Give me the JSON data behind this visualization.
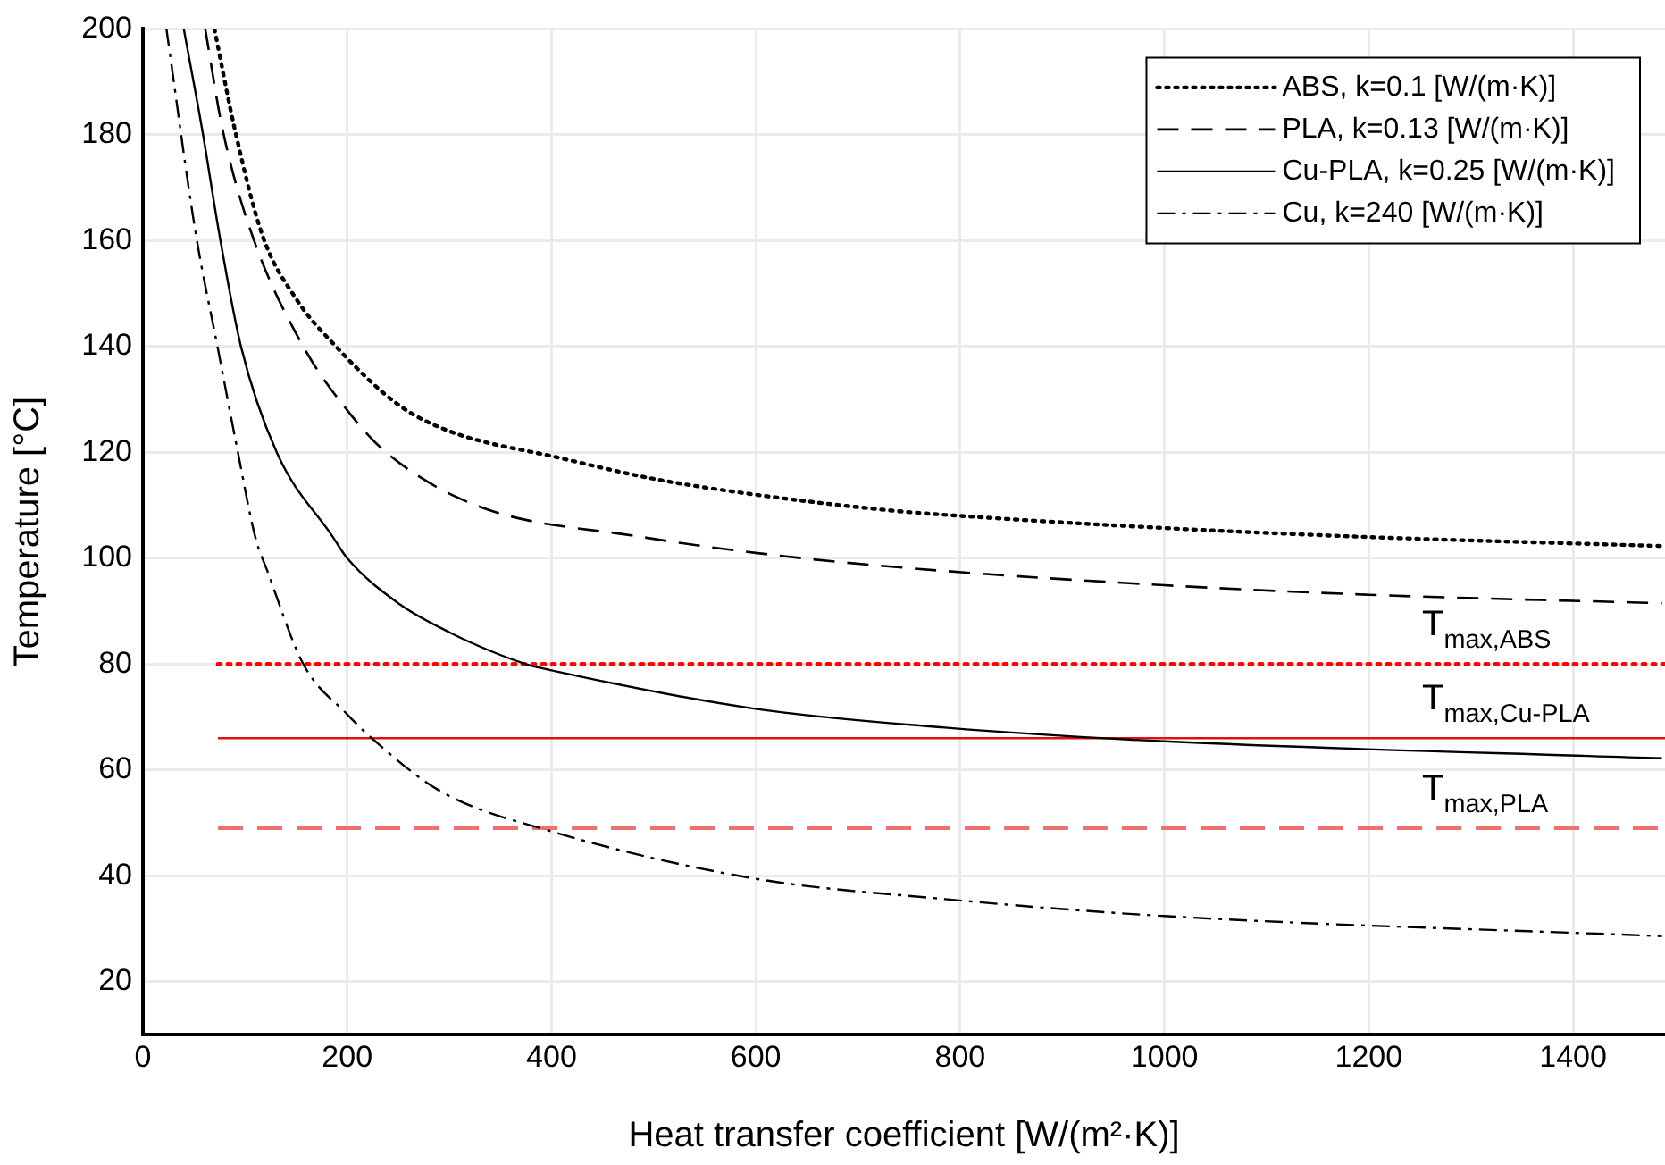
{
  "chart_data": {
    "type": "line",
    "xlabel": "Heat transfer coefficient [W/(m²·K)]",
    "ylabel": "Temperature [°C]",
    "xlim": [
      0,
      1490
    ],
    "ylim": [
      10,
      200
    ],
    "xticks": [
      0,
      200,
      400,
      600,
      800,
      1000,
      1200,
      1400
    ],
    "yticks": [
      20,
      40,
      60,
      80,
      100,
      120,
      140,
      160,
      180,
      200
    ],
    "grid": true,
    "legend": "top right",
    "marker": "none",
    "series": [
      {
        "name": "ABS, k=0.1 [W/(m·K)]",
        "color": "#000000",
        "line_style": "dotted",
        "x": [
          70,
          90,
          117,
          150,
          189,
          250,
          300,
          407,
          500,
          600,
          733,
          800,
          1000,
          1200,
          1487
        ],
        "values": [
          200,
          181,
          161,
          149,
          140,
          129,
          124,
          119,
          115,
          112,
          109,
          108,
          105.7,
          104,
          102.3
        ]
      },
      {
        "name": "PLA, k=0.13 [W/(m·K)]",
        "color": "#000000",
        "line_style": "dashed",
        "x": [
          61,
          78,
          107,
          157,
          204,
          238,
          326,
          489,
          600,
          733,
          1000,
          1200,
          1487
        ],
        "values": [
          200,
          181,
          161,
          140,
          127,
          120,
          110,
          104,
          101,
          98.4,
          94.9,
          93.1,
          91.5
        ]
      },
      {
        "name": "Cu-PLA, k=0.25 [W/(m·K)]",
        "color": "#000000",
        "line_style": "solid",
        "x": [
          40,
          58,
          75,
          96,
          131,
          186,
          200,
          250,
          300,
          340,
          375,
          398,
          598,
          785,
          1000,
          1487
        ],
        "values": [
          200,
          181,
          161,
          140,
          120,
          104,
          100,
          91.5,
          86,
          82.5,
          80,
          78.9,
          71.6,
          68,
          65.4,
          62.2
        ]
      },
      {
        "name": "Cu, k=240 [W/(m·K)]",
        "color": "#000000",
        "line_style": "dashdot",
        "x": [
          23,
          52,
          73,
          93,
          110,
          122,
          157,
          200,
          224,
          291,
          398,
          598,
          785,
          1000,
          1487
        ],
        "values": [
          200,
          161,
          140,
          120,
          104,
          97.5,
          80,
          70.5,
          66,
          56,
          48.5,
          39.5,
          35.6,
          32.4,
          28.6
        ]
      }
    ],
    "ref_lines": [
      {
        "axis": "y",
        "value": 80,
        "label": "T$_{max,ABS}$",
        "color": "#ff0000",
        "line_style": "dotted"
      },
      {
        "axis": "y",
        "value": 66,
        "label": "T$_{max,Cu-PLA}$",
        "color": "#e01010",
        "line_style": "solid"
      },
      {
        "axis": "y",
        "value": 49,
        "label": "T$_{max,PLA}$",
        "color": "#f07070",
        "line_style": "dashed"
      }
    ]
  }
}
